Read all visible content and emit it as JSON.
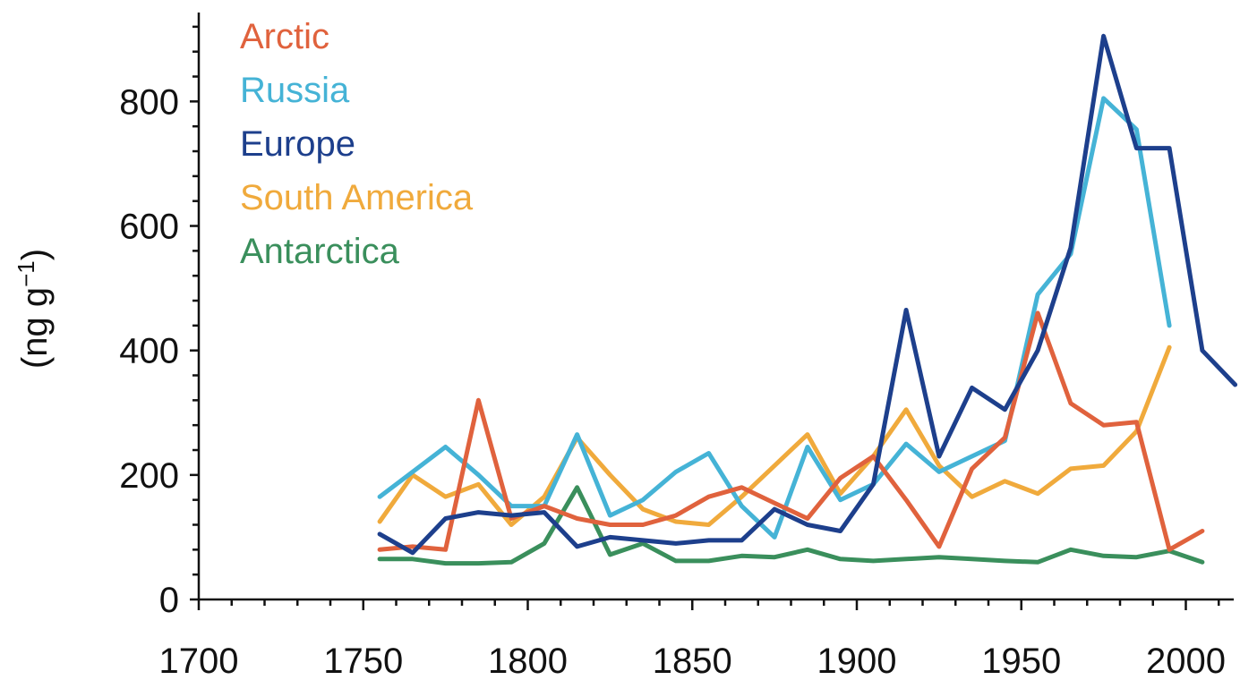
{
  "chart_data": {
    "type": "line",
    "title": "",
    "xlabel": "",
    "ylabel": "(ng g",
    "ylabel_sup": "−1",
    "ylabel_close": ")",
    "xlim": [
      1700,
      2020
    ],
    "ylim": [
      0,
      950
    ],
    "x_ticks": [
      1700,
      1750,
      1800,
      1850,
      1900,
      1950,
      2000
    ],
    "x_minor_step": 10,
    "y_ticks": [
      0,
      200,
      400,
      600,
      800
    ],
    "y_minor_step": 40,
    "grid": false,
    "legend_position": "top-left",
    "series": [
      {
        "name": "Arctic",
        "color": "#e0623d",
        "x": [
          1755,
          1765,
          1775,
          1785,
          1795,
          1805,
          1815,
          1825,
          1835,
          1845,
          1855,
          1865,
          1875,
          1885,
          1895,
          1905,
          1915,
          1925,
          1935,
          1945,
          1955,
          1965,
          1975,
          1985,
          1995,
          2005
        ],
        "y": [
          80,
          85,
          80,
          320,
          130,
          150,
          130,
          120,
          120,
          135,
          165,
          180,
          155,
          130,
          195,
          230,
          160,
          85,
          210,
          260,
          460,
          315,
          280,
          285,
          80,
          110
        ]
      },
      {
        "name": "Russia",
        "color": "#45b3d6",
        "x": [
          1755,
          1765,
          1775,
          1785,
          1795,
          1805,
          1815,
          1825,
          1835,
          1845,
          1855,
          1865,
          1875,
          1885,
          1895,
          1905,
          1915,
          1925,
          1935,
          1945,
          1955,
          1965,
          1975,
          1985,
          1995
        ],
        "y": [
          165,
          205,
          245,
          200,
          150,
          150,
          265,
          135,
          160,
          205,
          235,
          150,
          100,
          245,
          160,
          185,
          250,
          205,
          230,
          255,
          490,
          555,
          805,
          755,
          440
        ]
      },
      {
        "name": "Europe",
        "color": "#1d3f8c",
        "x": [
          1755,
          1765,
          1775,
          1785,
          1795,
          1805,
          1815,
          1825,
          1835,
          1845,
          1855,
          1865,
          1875,
          1885,
          1895,
          1905,
          1915,
          1925,
          1935,
          1945,
          1955,
          1965,
          1975,
          1985,
          1995,
          2005,
          2015
        ],
        "y": [
          105,
          75,
          130,
          140,
          135,
          140,
          85,
          100,
          95,
          90,
          95,
          95,
          145,
          120,
          110,
          185,
          465,
          230,
          340,
          305,
          400,
          565,
          905,
          725,
          725,
          400,
          345
        ]
      },
      {
        "name": "South America",
        "color": "#f0aa3c",
        "x": [
          1755,
          1765,
          1775,
          1785,
          1795,
          1805,
          1815,
          1825,
          1835,
          1845,
          1855,
          1865,
          1875,
          1885,
          1895,
          1905,
          1915,
          1925,
          1935,
          1945,
          1955,
          1965,
          1975,
          1985,
          1995
        ],
        "y": [
          125,
          200,
          165,
          185,
          120,
          165,
          260,
          200,
          145,
          125,
          120,
          165,
          215,
          265,
          170,
          230,
          305,
          215,
          165,
          190,
          170,
          210,
          215,
          270,
          405
        ]
      },
      {
        "name": "Antarctica",
        "color": "#3a8f5c",
        "x": [
          1755,
          1765,
          1775,
          1785,
          1795,
          1805,
          1815,
          1825,
          1835,
          1845,
          1855,
          1865,
          1875,
          1885,
          1895,
          1905,
          1915,
          1925,
          1935,
          1945,
          1955,
          1965,
          1975,
          1985,
          1995,
          2005
        ],
        "y": [
          65,
          65,
          58,
          58,
          60,
          90,
          180,
          72,
          90,
          62,
          62,
          70,
          68,
          80,
          65,
          62,
          65,
          68,
          65,
          62,
          60,
          80,
          70,
          68,
          78,
          60
        ]
      }
    ]
  }
}
